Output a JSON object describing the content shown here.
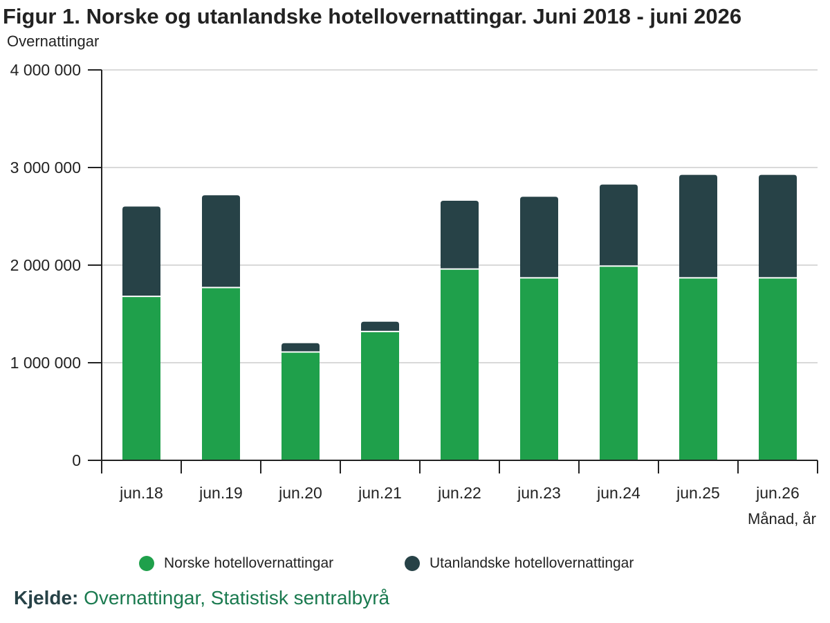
{
  "title": "Figur 1. Norske og utanlandske hotellovernattingar. Juni 2018 - juni 2026",
  "colors": {
    "norske": "#1fa04b",
    "utanlandske": "#274247",
    "grid": "#d9d9d9",
    "axis": "#222222",
    "source_link": "#1a7a4f"
  },
  "source": {
    "label": "Kjelde:",
    "text": "Overnattingar, Statistisk sentralbyrå"
  },
  "chart_data": {
    "type": "bar",
    "stacked": true,
    "ylabel": "Overnattingar",
    "xlabel": "Månad, år",
    "categories": [
      "jun.18",
      "jun.19",
      "jun.20",
      "jun.21",
      "jun.22",
      "jun.23",
      "jun.24",
      "jun.25",
      "jun.26"
    ],
    "series": [
      {
        "name": "Norske hotellovernattingar",
        "color": "#1fa04b",
        "values": [
          1680000,
          1770000,
          1110000,
          1320000,
          1960000,
          1870000,
          1990000,
          1870000,
          1870000
        ]
      },
      {
        "name": "Utanlandske hotellovernattingar",
        "color": "#274247",
        "values": [
          920000,
          945000,
          90000,
          100000,
          700000,
          830000,
          835000,
          1055000,
          1055000
        ]
      }
    ],
    "ylim": [
      0,
      4000000
    ],
    "yticks": [
      {
        "value": 0,
        "label": "0"
      },
      {
        "value": 1000000,
        "label": "1 000 000"
      },
      {
        "value": 2000000,
        "label": "2 000 000"
      },
      {
        "value": 3000000,
        "label": "3 000 000"
      },
      {
        "value": 4000000,
        "label": "4 000 000"
      }
    ],
    "grid": true,
    "legend_position": "bottom"
  }
}
